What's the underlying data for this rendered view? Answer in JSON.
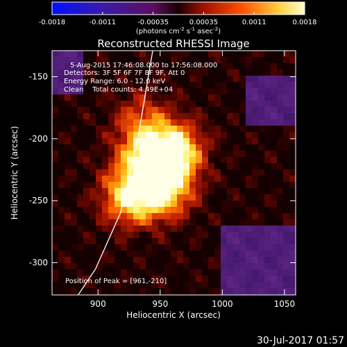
{
  "chart_data": {
    "type": "heatmap",
    "title": "Reconstructed RHESSI Image",
    "colorbar": {
      "ticks": [
        "-0.0018",
        "-0.0011",
        "-0.00035",
        "0.00035",
        "0.0011",
        "0.0018"
      ],
      "unit_label": "(photons cm",
      "unit_exp1": "-2",
      "unit_mid": " s",
      "unit_exp2": "-1",
      "unit_mid2": " asec",
      "unit_exp3": "-2",
      "unit_end": ")",
      "range": [
        -0.0018,
        0.0018
      ],
      "colormap": "rhessi-blue-purple-red-yellow-white"
    },
    "xlabel": "Heliocentric X (arcsec)",
    "ylabel": "Heliocentric Y (arcsec)",
    "xlim": [
      863,
      1059
    ],
    "ylim": [
      -326,
      -129
    ],
    "xticks": [
      900,
      950,
      1000,
      1050
    ],
    "yticks": [
      -150,
      -200,
      -250,
      -300
    ],
    "annotations": [
      "5-Aug-2015 17:46:08.000 to 17:56:08.000",
      "Detectors: 3F 5F 6F 7F 8F 9F, Att 0",
      "Energy Range: 6.0 - 12.0 keV",
      "Clean    Total counts: 4.49E+04"
    ],
    "peak_label": "Position of Peak = [961,-210]",
    "sources": [
      {
        "x": 961,
        "y": -210,
        "strength": 1.0
      },
      {
        "x": 952,
        "y": -240,
        "strength": 0.95
      },
      {
        "x": 925,
        "y": -247,
        "strength": 0.8
      },
      {
        "x": 937,
        "y": -215,
        "strength": 0.65
      },
      {
        "x": 935,
        "y": -185,
        "strength": 0.4
      }
    ],
    "limb": [
      [
        944,
        -129
      ],
      [
        932,
        -200
      ],
      [
        918,
        -260
      ],
      [
        898,
        -305
      ],
      [
        884,
        -326
      ]
    ]
  },
  "footer_date": "30-Jul-2017 01:57"
}
